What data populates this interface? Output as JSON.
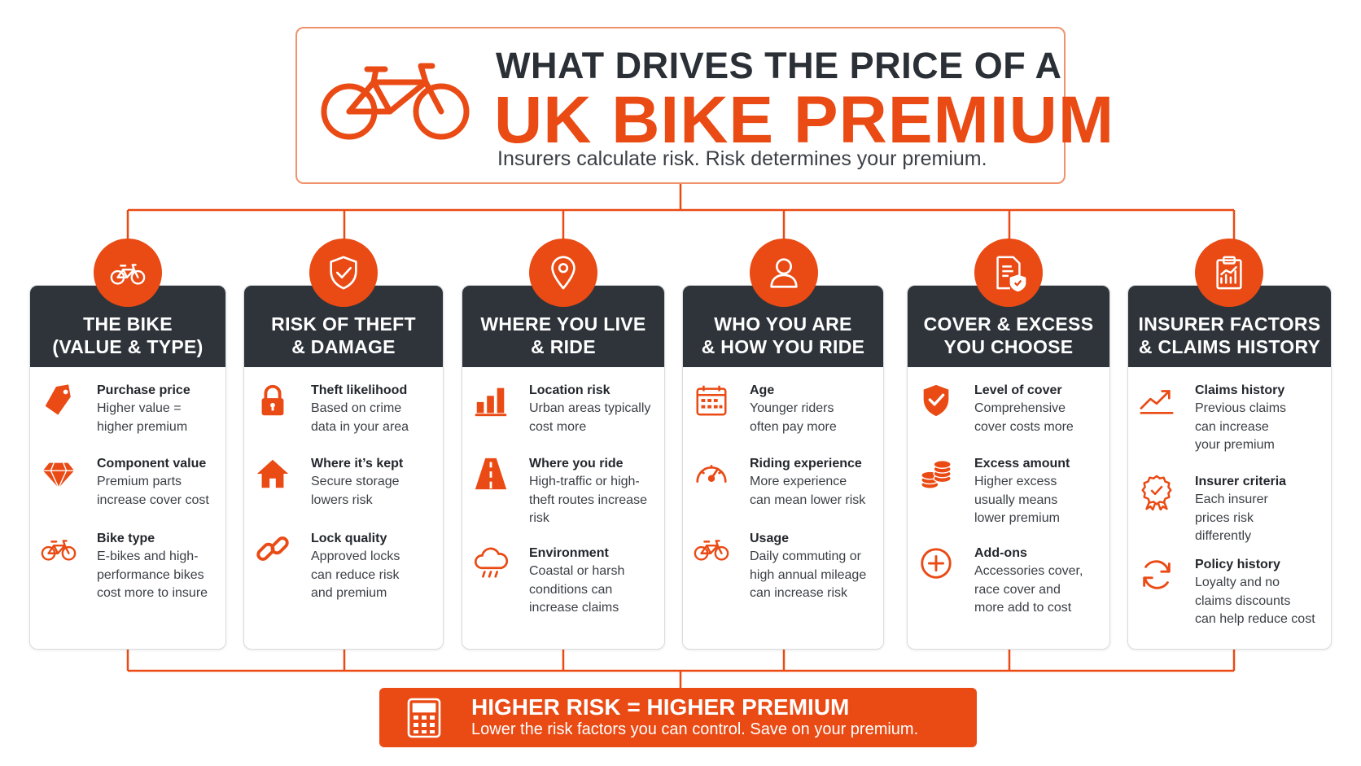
{
  "header": {
    "title_line1": "WHAT DRIVES THE PRICE OF A",
    "title_line2": "UK BIKE PREMIUM",
    "subtitle": "Insurers calculate risk. Risk determines your premium."
  },
  "columns": [
    {
      "head_icon": "bicycle-icon",
      "title_line1": "THE BIKE",
      "title_line2": "(VALUE & TYPE)",
      "items": [
        {
          "icon": "price-tag-icon",
          "title": "Purchase price",
          "desc": [
            "Higher value =",
            "higher premium"
          ]
        },
        {
          "icon": "diamond-icon",
          "title": "Component value",
          "desc": [
            "Premium parts",
            "increase cover cost"
          ]
        },
        {
          "icon": "bicycle-icon",
          "title": "Bike type",
          "desc": [
            "E-bikes and high-",
            "performance bikes",
            "cost more to insure"
          ]
        }
      ]
    },
    {
      "head_icon": "shield-check-icon",
      "title_line1": "RISK OF THEFT",
      "title_line2": "& DAMAGE",
      "items": [
        {
          "icon": "padlock-icon",
          "title": "Theft likelihood",
          "desc": [
            "Based on crime",
            "data in your area"
          ]
        },
        {
          "icon": "house-icon",
          "title": "Where it’s kept",
          "desc": [
            "Secure storage",
            "lowers risk"
          ]
        },
        {
          "icon": "chain-link-icon",
          "title": "Lock quality",
          "desc": [
            "Approved locks",
            "can reduce risk",
            "and premium"
          ]
        }
      ]
    },
    {
      "head_icon": "location-pin-icon",
      "title_line1": "WHERE YOU LIVE",
      "title_line2": "& RIDE",
      "items": [
        {
          "icon": "bar-chart-icon",
          "title": "Location risk",
          "desc": [
            "Urban areas typically",
            "cost more"
          ]
        },
        {
          "icon": "road-icon",
          "title": "Where you ride",
          "desc": [
            "High-traffic or high-",
            "theft routes increase",
            "risk"
          ]
        },
        {
          "icon": "rain-cloud-icon",
          "title": "Environment",
          "desc": [
            "Coastal or harsh",
            "conditions can",
            "increase claims"
          ]
        }
      ]
    },
    {
      "head_icon": "person-icon",
      "title_line1": "WHO YOU ARE",
      "title_line2": "& HOW YOU RIDE",
      "items": [
        {
          "icon": "calendar-icon",
          "title": "Age",
          "desc": [
            "Younger riders",
            "often pay more"
          ]
        },
        {
          "icon": "speedometer-icon",
          "title": "Riding experience",
          "desc": [
            "More experience",
            "can mean lower risk"
          ]
        },
        {
          "icon": "bicycle-icon",
          "title": "Usage",
          "desc": [
            "Daily commuting or",
            "high annual mileage",
            "can increase risk"
          ]
        }
      ]
    },
    {
      "head_icon": "policy-document-icon",
      "title_line1": "COVER & EXCESS",
      "title_line2": "YOU CHOOSE",
      "items": [
        {
          "icon": "shield-check-icon",
          "title": "Level of cover",
          "desc": [
            "Comprehensive",
            "cover costs more"
          ]
        },
        {
          "icon": "coin-stack-icon",
          "title": "Excess amount",
          "desc": [
            "Higher excess",
            "usually means",
            "lower premium"
          ]
        },
        {
          "icon": "plus-circle-icon",
          "title": "Add-ons",
          "desc": [
            "Accessories cover,",
            "race cover and",
            "more add to cost"
          ]
        }
      ]
    },
    {
      "head_icon": "clipboard-chart-icon",
      "title_line1": "INSURER FACTORS",
      "title_line2": "& CLAIMS HISTORY",
      "items": [
        {
          "icon": "trend-up-icon",
          "title": "Claims history",
          "desc": [
            "Previous claims",
            "can increase",
            "your premium"
          ]
        },
        {
          "icon": "award-ribbon-icon",
          "title": "Insurer criteria",
          "desc": [
            "Each insurer",
            "prices risk",
            "differently"
          ]
        },
        {
          "icon": "refresh-icon",
          "title": "Policy history",
          "desc": [
            "Loyalty and no",
            "claims discounts",
            "can help reduce cost"
          ]
        }
      ]
    }
  ],
  "footer": {
    "icon": "calculator-icon",
    "title": "HIGHER RISK = HIGHER PREMIUM",
    "subtitle": "Lower the risk factors you can control. Save on your premium."
  },
  "colors": {
    "accent": "#ea4a14",
    "dark": "#2f343b",
    "border": "#f0926b"
  }
}
